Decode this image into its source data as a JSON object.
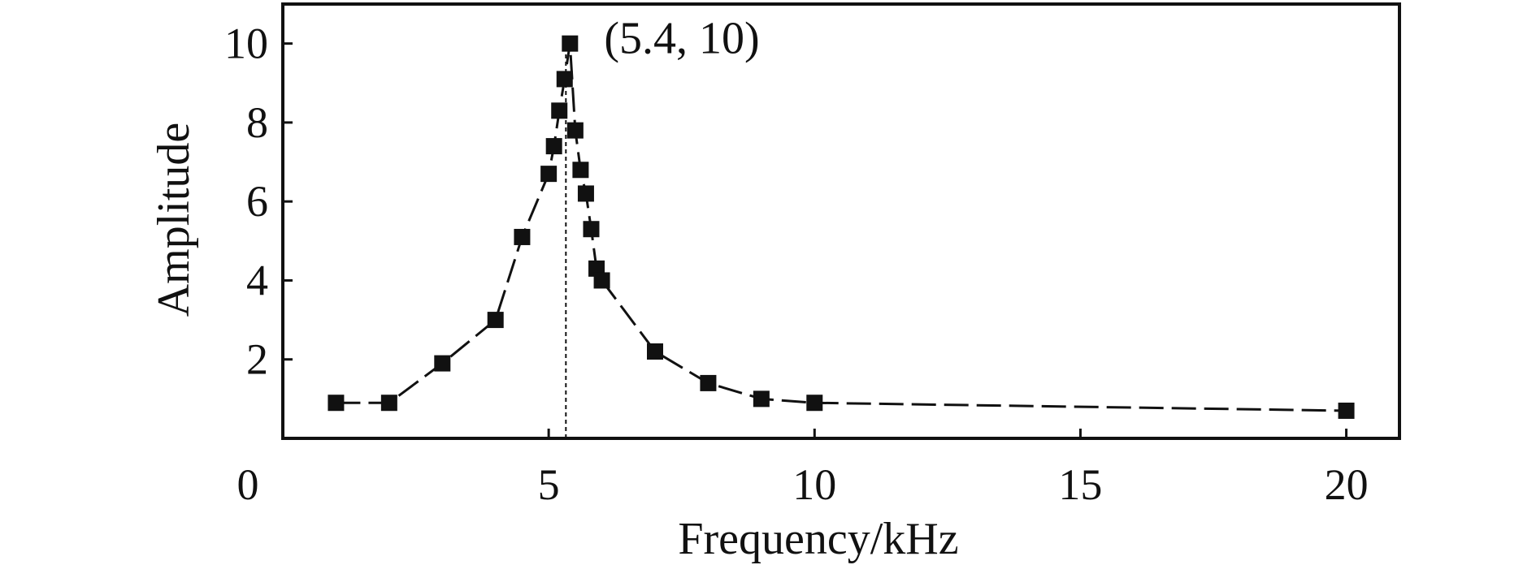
{
  "chart_data": {
    "type": "line",
    "title": "",
    "xlabel": "Frequency/kHz",
    "ylabel": "Amplitude",
    "xlim": [
      0,
      21
    ],
    "ylim": [
      0,
      11
    ],
    "x_ticks": [
      5,
      10,
      15,
      20
    ],
    "y_ticks": [
      2,
      4,
      6,
      8,
      10
    ],
    "origin_label": "0",
    "series": [
      {
        "marker": "square",
        "color": "#111111",
        "line_style": "dashed",
        "points": [
          {
            "x": 1,
            "y": 0.9
          },
          {
            "x": 2,
            "y": 0.9
          },
          {
            "x": 3,
            "y": 1.9
          },
          {
            "x": 4,
            "y": 3.0
          },
          {
            "x": 4.5,
            "y": 5.1
          },
          {
            "x": 5.0,
            "y": 6.7
          },
          {
            "x": 5.1,
            "y": 7.4
          },
          {
            "x": 5.2,
            "y": 8.3
          },
          {
            "x": 5.3,
            "y": 9.1
          },
          {
            "x": 5.4,
            "y": 10.0
          },
          {
            "x": 5.5,
            "y": 7.8
          },
          {
            "x": 5.6,
            "y": 6.8
          },
          {
            "x": 5.7,
            "y": 6.2
          },
          {
            "x": 5.8,
            "y": 5.3
          },
          {
            "x": 5.9,
            "y": 4.3
          },
          {
            "x": 6.0,
            "y": 4.0
          },
          {
            "x": 7.0,
            "y": 2.2
          },
          {
            "x": 8.0,
            "y": 1.4
          },
          {
            "x": 9.0,
            "y": 1.0
          },
          {
            "x": 10.0,
            "y": 0.9
          },
          {
            "x": 20.0,
            "y": 0.7
          }
        ]
      }
    ],
    "annotations": [
      {
        "text": "(5.4, 10)",
        "x": 5.4,
        "y": 10
      }
    ],
    "reference_lines": [
      {
        "orientation": "vertical",
        "x": 5.4,
        "style": "dotted"
      }
    ]
  }
}
